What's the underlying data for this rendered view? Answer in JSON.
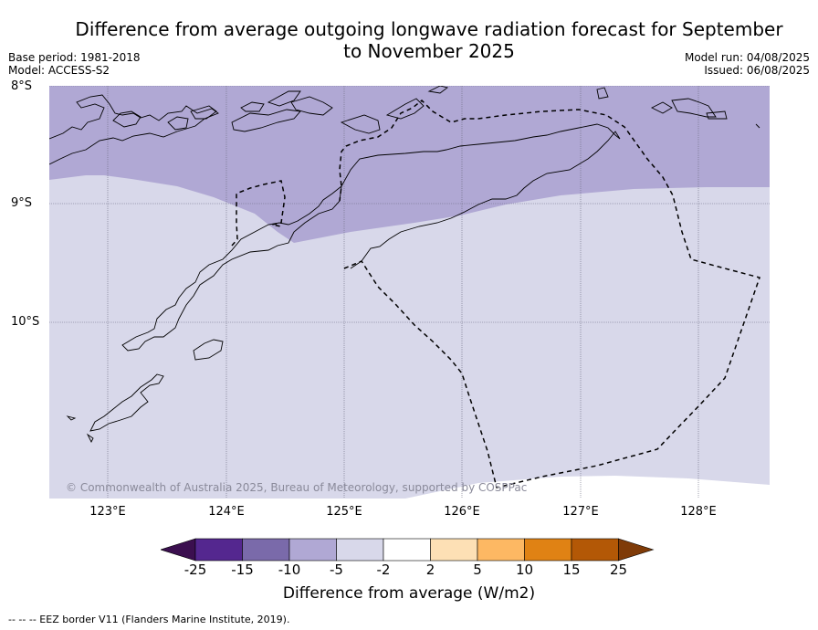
{
  "title": "Difference from average outgoing longwave radiation forecast for September to November 2025",
  "meta": {
    "base_period": "Base period: 1981-2018",
    "model": "Model: ACCESS-S2",
    "model_run": "Model run: 04/08/2025",
    "issued": "Issued: 06/08/2025"
  },
  "latitudes": [
    "8°S",
    "9°S",
    "10°S"
  ],
  "longitudes": [
    "123°E",
    "124°E",
    "125°E",
    "126°E",
    "127°E",
    "128°E"
  ],
  "copyright": "© Commonwealth of Australia 2025, Bureau of Meteorology, supported by COSPPac",
  "colorbar": {
    "ticks": [
      "-25",
      "-15",
      "-10",
      "-5",
      "-2",
      "2",
      "5",
      "10",
      "15",
      "25"
    ],
    "colors": [
      "#3b0f4f",
      "#54278f",
      "#7a6aaa",
      "#b0a8d4",
      "#d8d8ea",
      "#ffffff",
      "#fde0b5",
      "#fdb863",
      "#e08214",
      "#b35806",
      "#7f3b08"
    ],
    "label": "Difference from average (W/m2)"
  },
  "footnote": "--  --  -- EEZ border V11 (Flanders Marine Institute, 2019)."
}
